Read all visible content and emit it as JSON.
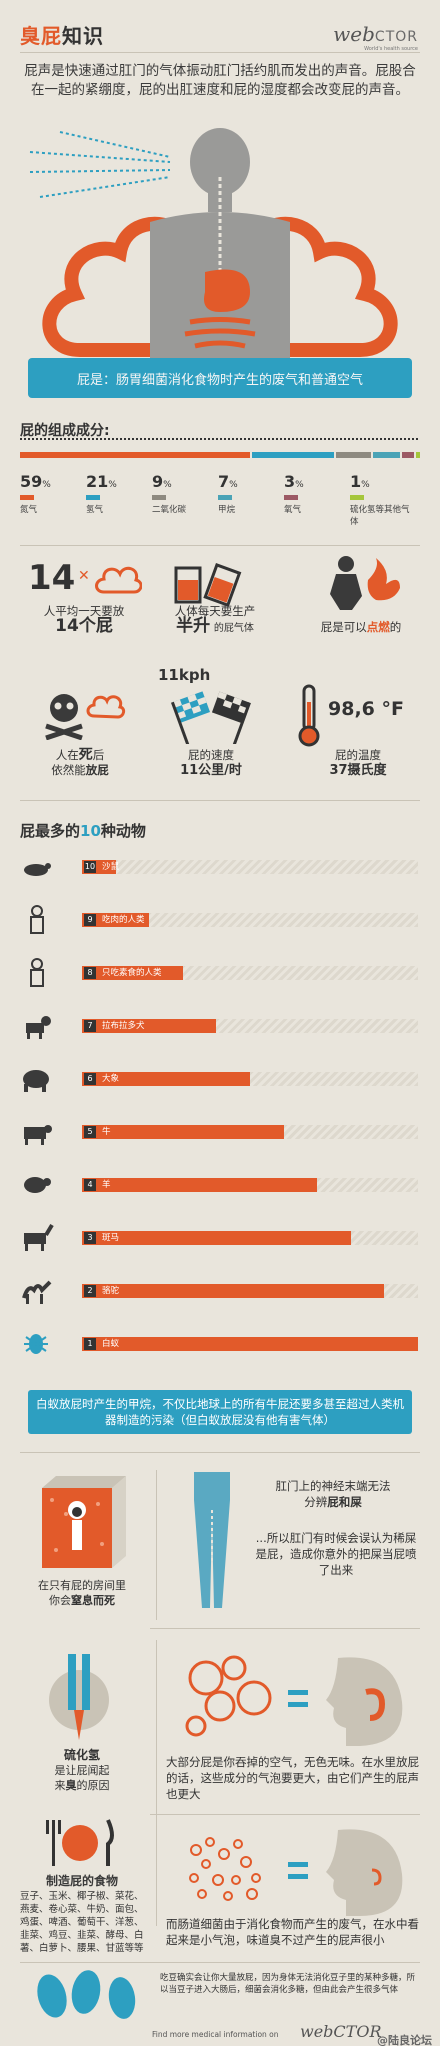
{
  "header": {
    "title_part1": "臭屁",
    "title_part2": "知识",
    "brand": "web",
    "brand_suffix": "CTOR",
    "brand_tag": "World's health source"
  },
  "intro": "屁声是快速通过肛门的气体振动肛门括约肌而发出的声音。屁股合在一起的紧绷度，屁的出肛速度和屁的湿度都会改变屁的声音。",
  "banner": "屁是：肠胃细菌消化食物时产生的废气和普通空气",
  "composition": {
    "title_prefix": "屁的",
    "title_main": "组成成分",
    "title_suffix": ":",
    "items": [
      {
        "pct": "59",
        "unit": "%",
        "label": "氮气",
        "color": "#e25a2a"
      },
      {
        "pct": "21",
        "unit": "%",
        "label": "氢气",
        "color": "#2d9fc1"
      },
      {
        "pct": "9",
        "unit": "%",
        "label": "二氧化碳",
        "color": "#8e8a80"
      },
      {
        "pct": "7",
        "unit": "%",
        "label": "甲烷",
        "color": "#4aa3b6"
      },
      {
        "pct": "3",
        "unit": "%",
        "label": "氧气",
        "color": "#9c5964"
      },
      {
        "pct": "1",
        "unit": "%",
        "label": "硫化氢等其他气体",
        "color": "#a5c63b"
      }
    ]
  },
  "facts": {
    "f1_num": "14",
    "f1_line1": "人平均一天要放",
    "f1_big": "14个屁",
    "f2_line1": "人体每天要生产",
    "f2_big": "半升",
    "f2_line2": "的屁气体",
    "f3_text": "屁是可以",
    "f3_hl": "点燃",
    "f3_end": "的",
    "f4_line1": "人在",
    "f4_hl1": "死",
    "f4_line1b": "后",
    "f4_line2": "依然能",
    "f4_hl2": "放屁",
    "f5_speed": "11kph",
    "f5_line1": "屁的速度",
    "f5_big": "11公里/时",
    "f6_temp": "98,6 °F",
    "f6_line1": "屁的温度",
    "f6_big": "37摄氏度"
  },
  "animals": {
    "title_prefix": "屁最多的",
    "title_num": "10",
    "title_suffix": "种动物",
    "items": [
      {
        "rank": "10",
        "name": "沙鼠",
        "value": 1
      },
      {
        "rank": "9",
        "name": "吃肉的人类",
        "value": 2
      },
      {
        "rank": "8",
        "name": "只吃素食的人类",
        "value": 3
      },
      {
        "rank": "7",
        "name": "拉布拉多犬",
        "value": 4
      },
      {
        "rank": "6",
        "name": "大象",
        "value": 5
      },
      {
        "rank": "5",
        "name": "牛",
        "value": 6
      },
      {
        "rank": "4",
        "name": "羊",
        "value": 7
      },
      {
        "rank": "3",
        "name": "斑马",
        "value": 8
      },
      {
        "rank": "2",
        "name": "骆驼",
        "value": 9
      },
      {
        "rank": "1",
        "name": "白蚁",
        "value": 10
      }
    ],
    "note": "白蚁放屁时产生的甲烷，不仅比地球上的所有牛屁还要多甚至超过人类机器制造的污染（但白蚁放屁没有他有害气体）"
  },
  "misc": {
    "room_line1": "在只有屁的房间里",
    "room_line2_a": "你会",
    "room_line2_hl": "窒息而死",
    "nerve_line1": "肛门上的神经末端无法",
    "nerve_line2_a": "分辨",
    "nerve_line2_hl": "屁和屎",
    "nerve_more": "...所以肛门有时候会误认为稀屎是屁，造成你意外的把屎当屁喷了出来",
    "h2s_title": "硫化氢",
    "h2s_line1": "是让屁闻起",
    "h2s_line2_a": "来",
    "h2s_line2_hl": "臭",
    "h2s_line2_b": "的原因",
    "air_text": "大部分屁是你吞掉的空气，无色无味。在水里放屁的话，这些成分的气泡要更大，由它们产生的屁声也更大",
    "food_title": "制造屁的食物",
    "food_list": "豆子、玉米、椰子椒、菜花、燕麦、卷心菜、牛奶、面包、鸡蛋、啤酒、葡萄干、洋葱、韭菜、鸡豆、韭菜、酵母、白薯、白萝卜、腰果、甘蓝等等",
    "bacteria_text": "而肠道细菌由于消化食物而产生的废气，在水中看起来是小气泡，味道臭不过产生的屁声很小",
    "beans_text": "吃豆确实会让你大量放屁，因为身体无法消化豆子里的某种多糖，所以当豆子进入大肠后，细菌会消化多糖，但由此会产生很多气体",
    "footer_find": "Find more medical information on",
    "footer_brand": "webCTOR",
    "watermark": "@陆良论坛"
  },
  "colors": {
    "accent": "#e25a2a",
    "blue": "#2d9fc1",
    "dark": "#333333",
    "bg": "#e9e5dc"
  }
}
